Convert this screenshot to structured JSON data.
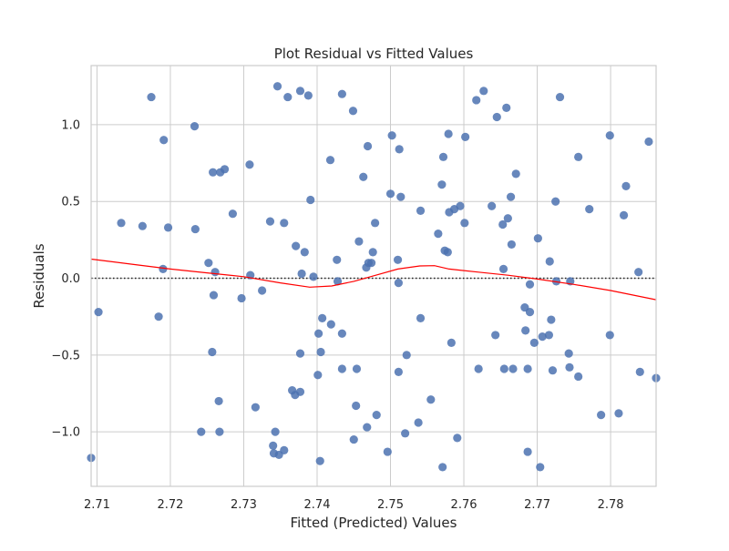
{
  "chart_data": {
    "type": "scatter",
    "title": "Plot Residual vs Fitted Values",
    "xlabel": "Fitted (Predicted) Values",
    "ylabel": "Residuals",
    "xlim": [
      2.7092,
      2.7862
    ],
    "ylim": [
      -1.355,
      1.385
    ],
    "xticks": [
      2.71,
      2.72,
      2.73,
      2.74,
      2.75,
      2.76,
      2.77,
      2.78
    ],
    "xtick_labels": [
      "2.71",
      "2.72",
      "2.73",
      "2.74",
      "2.75",
      "2.76",
      "2.77",
      "2.78"
    ],
    "yticks": [
      -1.0,
      -0.5,
      0.0,
      0.5,
      1.0
    ],
    "ytick_labels": [
      "−1.0",
      "−0.5",
      "0.0",
      "0.5",
      "1.0"
    ],
    "grid": true,
    "zero_line": 0,
    "colors": {
      "points": "#4C72B0",
      "lowess": "#ff0000",
      "grid": "#cccccc",
      "zero_line": "#222222"
    },
    "points": [
      [
        2.7092,
        -1.17
      ],
      [
        2.7102,
        -0.22
      ],
      [
        2.7133,
        0.36
      ],
      [
        2.7162,
        0.34
      ],
      [
        2.7174,
        1.18
      ],
      [
        2.7184,
        -0.25
      ],
      [
        2.719,
        0.06
      ],
      [
        2.7191,
        0.9
      ],
      [
        2.7197,
        0.33
      ],
      [
        2.7233,
        0.99
      ],
      [
        2.7234,
        0.32
      ],
      [
        2.7242,
        -1.0
      ],
      [
        2.7252,
        0.1
      ],
      [
        2.7257,
        -0.48
      ],
      [
        2.7258,
        0.69
      ],
      [
        2.7259,
        -0.11
      ],
      [
        2.7261,
        0.04
      ],
      [
        2.7266,
        -0.8
      ],
      [
        2.7267,
        -1.0
      ],
      [
        2.7268,
        0.69
      ],
      [
        2.7274,
        0.71
      ],
      [
        2.7285,
        0.42
      ],
      [
        2.7297,
        -0.13
      ],
      [
        2.7308,
        0.74
      ],
      [
        2.7309,
        0.02
      ],
      [
        2.7316,
        -0.84
      ],
      [
        2.7325,
        -0.08
      ],
      [
        2.7336,
        0.37
      ],
      [
        2.734,
        -1.09
      ],
      [
        2.7341,
        -1.14
      ],
      [
        2.7343,
        -1.0
      ],
      [
        2.7346,
        1.25
      ],
      [
        2.7348,
        -1.15
      ],
      [
        2.7355,
        -1.12
      ],
      [
        2.7355,
        0.36
      ],
      [
        2.736,
        1.18
      ],
      [
        2.7366,
        -0.73
      ],
      [
        2.737,
        -0.76
      ],
      [
        2.7371,
        0.21
      ],
      [
        2.7377,
        -0.49
      ],
      [
        2.7377,
        1.22
      ],
      [
        2.7377,
        -0.74
      ],
      [
        2.7379,
        0.03
      ],
      [
        2.7383,
        0.17
      ],
      [
        2.7388,
        1.19
      ],
      [
        2.7391,
        0.51
      ],
      [
        2.7395,
        0.01
      ],
      [
        2.7401,
        -0.63
      ],
      [
        2.7402,
        -0.36
      ],
      [
        2.7404,
        -1.19
      ],
      [
        2.7405,
        -0.48
      ],
      [
        2.7407,
        -0.26
      ],
      [
        2.7418,
        0.77
      ],
      [
        2.7419,
        -0.3
      ],
      [
        2.7427,
        0.12
      ],
      [
        2.7428,
        -0.02
      ],
      [
        2.7434,
        -0.36
      ],
      [
        2.7434,
        1.2
      ],
      [
        2.7434,
        -0.59
      ],
      [
        2.7449,
        1.09
      ],
      [
        2.745,
        -1.05
      ],
      [
        2.7453,
        -0.83
      ],
      [
        2.7454,
        -0.59
      ],
      [
        2.7457,
        0.24
      ],
      [
        2.7463,
        0.66
      ],
      [
        2.7467,
        0.07
      ],
      [
        2.7468,
        -0.97
      ],
      [
        2.7469,
        0.86
      ],
      [
        2.747,
        0.1
      ],
      [
        2.7474,
        0.1
      ],
      [
        2.7476,
        0.17
      ],
      [
        2.7479,
        0.36
      ],
      [
        2.7481,
        -0.89
      ],
      [
        2.7496,
        -1.13
      ],
      [
        2.75,
        0.55
      ],
      [
        2.7502,
        0.93
      ],
      [
        2.751,
        0.12
      ],
      [
        2.7511,
        -0.61
      ],
      [
        2.7511,
        -0.03
      ],
      [
        2.7512,
        0.84
      ],
      [
        2.7514,
        0.53
      ],
      [
        2.752,
        -1.01
      ],
      [
        2.7522,
        -0.5
      ],
      [
        2.7538,
        -0.94
      ],
      [
        2.7541,
        0.44
      ],
      [
        2.7541,
        -0.26
      ],
      [
        2.7555,
        -0.79
      ],
      [
        2.7565,
        0.29
      ],
      [
        2.757,
        0.61
      ],
      [
        2.7571,
        -1.23
      ],
      [
        2.7572,
        0.79
      ],
      [
        2.7574,
        0.18
      ],
      [
        2.7578,
        0.17
      ],
      [
        2.7579,
        0.94
      ],
      [
        2.758,
        0.43
      ],
      [
        2.7583,
        -0.42
      ],
      [
        2.7587,
        0.45
      ],
      [
        2.7591,
        -1.04
      ],
      [
        2.7595,
        0.47
      ],
      [
        2.7601,
        0.36
      ],
      [
        2.7602,
        0.92
      ],
      [
        2.7617,
        1.16
      ],
      [
        2.762,
        -0.59
      ],
      [
        2.7627,
        1.22
      ],
      [
        2.7638,
        0.47
      ],
      [
        2.7643,
        -0.37
      ],
      [
        2.7645,
        1.05
      ],
      [
        2.7653,
        0.35
      ],
      [
        2.7654,
        0.06
      ],
      [
        2.7655,
        -0.59
      ],
      [
        2.7658,
        1.11
      ],
      [
        2.766,
        0.39
      ],
      [
        2.7664,
        0.53
      ],
      [
        2.7665,
        0.22
      ],
      [
        2.7667,
        -0.59
      ],
      [
        2.7671,
        0.68
      ],
      [
        2.7683,
        -0.19
      ],
      [
        2.7684,
        -0.34
      ],
      [
        2.7687,
        -1.13
      ],
      [
        2.7687,
        -0.59
      ],
      [
        2.769,
        -0.22
      ],
      [
        2.769,
        -0.04
      ],
      [
        2.7696,
        -0.42
      ],
      [
        2.7701,
        0.26
      ],
      [
        2.7704,
        -1.23
      ],
      [
        2.7707,
        -0.38
      ],
      [
        2.7716,
        -0.37
      ],
      [
        2.7717,
        0.11
      ],
      [
        2.7719,
        -0.27
      ],
      [
        2.7721,
        -0.6
      ],
      [
        2.7725,
        0.5
      ],
      [
        2.7726,
        -0.02
      ],
      [
        2.7731,
        1.18
      ],
      [
        2.7743,
        -0.49
      ],
      [
        2.7744,
        -0.58
      ],
      [
        2.7745,
        -0.02
      ],
      [
        2.7756,
        -0.64
      ],
      [
        2.7756,
        0.79
      ],
      [
        2.7771,
        0.45
      ],
      [
        2.7787,
        -0.89
      ],
      [
        2.7799,
        0.93
      ],
      [
        2.7799,
        -0.37
      ],
      [
        2.7811,
        -0.88
      ],
      [
        2.7818,
        0.41
      ],
      [
        2.7821,
        0.6
      ],
      [
        2.7838,
        0.04
      ],
      [
        2.784,
        -0.61
      ],
      [
        2.7852,
        0.89
      ],
      [
        2.7862,
        -0.65
      ]
    ],
    "lowess": [
      [
        2.7092,
        0.125
      ],
      [
        2.715,
        0.09
      ],
      [
        2.72,
        0.06
      ],
      [
        2.725,
        0.035
      ],
      [
        2.73,
        0.01
      ],
      [
        2.735,
        -0.03
      ],
      [
        2.739,
        -0.058
      ],
      [
        2.742,
        -0.05
      ],
      [
        2.745,
        -0.02
      ],
      [
        2.748,
        0.02
      ],
      [
        2.751,
        0.06
      ],
      [
        2.754,
        0.08
      ],
      [
        2.756,
        0.082
      ],
      [
        2.758,
        0.06
      ],
      [
        2.762,
        0.04
      ],
      [
        2.766,
        0.02
      ],
      [
        2.77,
        -0.005
      ],
      [
        2.775,
        -0.04
      ],
      [
        2.78,
        -0.08
      ],
      [
        2.7862,
        -0.14
      ]
    ]
  }
}
